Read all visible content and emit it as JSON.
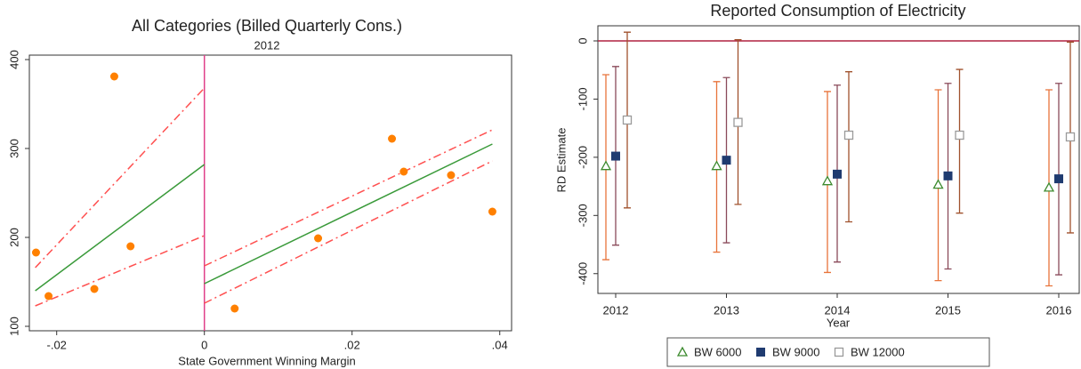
{
  "chart_data": [
    {
      "type": "scatter",
      "title": "All Categories (Billed Quarterly Cons.)",
      "subtitle": "2012",
      "x_label": "State Government Winning Margin",
      "x": [
        -0.0228,
        -0.0211,
        -0.0149,
        -0.0122,
        -0.01,
        0.0041,
        0.0154,
        0.0254,
        0.027,
        0.0334,
        0.039
      ],
      "values": [
        183,
        134,
        142,
        381,
        190,
        120,
        199,
        311,
        274,
        270,
        229
      ],
      "color": "#ff8000",
      "lines": [
        {
          "x": [
            -0.0229,
            0
          ],
          "values": [
            140,
            282
          ],
          "color": "#3a9a3a",
          "dash": false
        },
        {
          "x": [
            -0.0229,
            0
          ],
          "values": [
            166,
            368
          ],
          "color": "#ff5050",
          "dash": true
        },
        {
          "x": [
            -0.0229,
            0
          ],
          "values": [
            123,
            202
          ],
          "color": "#ff5050",
          "dash": true
        },
        {
          "x": [
            0,
            0.039
          ],
          "values": [
            148,
            305
          ],
          "color": "#3a9a3a",
          "dash": false
        },
        {
          "x": [
            0,
            0.039
          ],
          "values": [
            168,
            321
          ],
          "color": "#ff5050",
          "dash": true
        },
        {
          "x": [
            0,
            0.039
          ],
          "values": [
            126,
            286
          ],
          "color": "#ff5050",
          "dash": true
        }
      ],
      "vline": 0,
      "vline_color": "#e0408a",
      "xlim": [
        -0.0237,
        0.0416
      ],
      "ylim": [
        95,
        405
      ],
      "xticks": [
        {
          "value": -0.02,
          "label": "-.02"
        },
        0,
        {
          "value": 0.02,
          "label": ".02"
        },
        {
          "value": 0.04,
          "label": ".04"
        }
      ],
      "yticks": [
        100,
        200,
        300,
        400
      ]
    },
    {
      "type": "errorbar",
      "title": "Reported Consumption of Electricity",
      "y_label": "RD Estimate",
      "x_label": "Year",
      "categories": [
        "2012",
        "2013",
        "2014",
        "2015",
        "2016"
      ],
      "series": [
        {
          "name": "BW 6000",
          "marker": "triangle",
          "color": "#3c8a2e",
          "bar_color": "#e8743b",
          "values": [
            -215,
            -215,
            -241,
            -247,
            -252
          ],
          "lower": [
            -376,
            -363,
            -398,
            -412,
            -421
          ],
          "upper": [
            -58,
            -70,
            -87,
            -84,
            -84
          ]
        },
        {
          "name": "BW 9000",
          "marker": "square",
          "color": "#1f3b70",
          "bar_color": "#8a4a5a",
          "values": [
            -198,
            -205,
            -229,
            -232,
            -237
          ],
          "lower": [
            -351,
            -347,
            -380,
            -392,
            -402
          ],
          "upper": [
            -44,
            -63,
            -76,
            -73,
            -73
          ]
        },
        {
          "name": "BW 12000",
          "marker": "hollow-square",
          "color": "#9a9a9a",
          "bar_color": "#a0522d",
          "values": [
            -136,
            -140,
            -162,
            -162,
            -165
          ],
          "lower": [
            -287,
            -281,
            -311,
            -296,
            -330
          ],
          "upper": [
            15,
            2,
            -53,
            -49,
            -2
          ]
        }
      ],
      "hline": 0,
      "hline_color": "#b02040",
      "ylim": [
        -434,
        26
      ],
      "yticks": [
        0,
        -100,
        -200,
        -300,
        -400
      ],
      "legend": "bottom"
    }
  ]
}
